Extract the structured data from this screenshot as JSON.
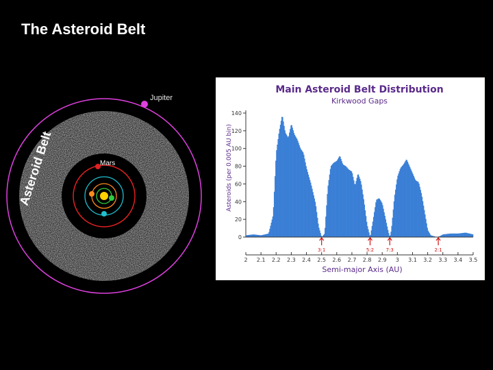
{
  "slide": {
    "title": "The Asteroid Belt"
  },
  "orbit_diagram": {
    "labels": {
      "jupiter": "Jupiter",
      "asteroid_belt": "Asteroid Belt",
      "mars": "Mars"
    },
    "colors": {
      "jupiter": "#e040e0",
      "belt": "#9a9a9a",
      "mars": "#e02020",
      "sun": "#ffd200",
      "earth": "#2ecc40",
      "venus": "#ff8c1a",
      "mercury": "#20c0d0"
    }
  },
  "chart_data": {
    "type": "bar",
    "title": "Main Asteroid Belt Distribution",
    "subtitle": "Kirkwood Gaps",
    "xlabel": "Semi-major Axis (AU)",
    "ylabel": "Asteroids (per 0.005 AU bin)",
    "xlim": [
      2.0,
      3.5
    ],
    "ylim": [
      0,
      140
    ],
    "x_ticks": [
      "2",
      "2.1",
      "2.2",
      "2.3",
      "2.4",
      "2.5",
      "2.6",
      "2.7",
      "2.8",
      "2.9",
      "3",
      "3.1",
      "3.2",
      "3.3",
      "3.4",
      "3.5"
    ],
    "y_ticks": [
      "0",
      "20",
      "40",
      "60",
      "80",
      "100",
      "120",
      "140"
    ],
    "bar_color": "#3a7fd6",
    "annotation_color": "#d01010",
    "gaps": [
      {
        "label": "3:1",
        "x": 2.5
      },
      {
        "label": "5:2",
        "x": 2.82
      },
      {
        "label": "7:3",
        "x": 2.95
      },
      {
        "label": "2:1",
        "x": 3.27
      }
    ],
    "profile": [
      [
        2.0,
        2
      ],
      [
        2.05,
        3
      ],
      [
        2.1,
        2
      ],
      [
        2.15,
        4
      ],
      [
        2.18,
        25
      ],
      [
        2.2,
        95
      ],
      [
        2.22,
        120
      ],
      [
        2.24,
        138
      ],
      [
        2.26,
        118
      ],
      [
        2.28,
        112
      ],
      [
        2.3,
        128
      ],
      [
        2.32,
        116
      ],
      [
        2.34,
        110
      ],
      [
        2.36,
        100
      ],
      [
        2.38,
        95
      ],
      [
        2.4,
        78
      ],
      [
        2.43,
        60
      ],
      [
        2.46,
        38
      ],
      [
        2.48,
        12
      ],
      [
        2.5,
        0
      ],
      [
        2.52,
        4
      ],
      [
        2.54,
        55
      ],
      [
        2.56,
        80
      ],
      [
        2.58,
        84
      ],
      [
        2.6,
        86
      ],
      [
        2.62,
        92
      ],
      [
        2.64,
        82
      ],
      [
        2.66,
        80
      ],
      [
        2.68,
        76
      ],
      [
        2.7,
        74
      ],
      [
        2.72,
        58
      ],
      [
        2.74,
        72
      ],
      [
        2.76,
        62
      ],
      [
        2.78,
        40
      ],
      [
        2.8,
        14
      ],
      [
        2.82,
        0
      ],
      [
        2.84,
        20
      ],
      [
        2.86,
        42
      ],
      [
        2.88,
        44
      ],
      [
        2.9,
        38
      ],
      [
        2.92,
        22
      ],
      [
        2.94,
        6
      ],
      [
        2.95,
        0
      ],
      [
        2.96,
        8
      ],
      [
        2.98,
        45
      ],
      [
        3.0,
        68
      ],
      [
        3.02,
        78
      ],
      [
        3.04,
        82
      ],
      [
        3.06,
        88
      ],
      [
        3.08,
        80
      ],
      [
        3.1,
        72
      ],
      [
        3.12,
        64
      ],
      [
        3.14,
        62
      ],
      [
        3.16,
        48
      ],
      [
        3.18,
        28
      ],
      [
        3.2,
        8
      ],
      [
        3.22,
        2
      ],
      [
        3.24,
        1
      ],
      [
        3.26,
        0
      ],
      [
        3.28,
        1
      ],
      [
        3.3,
        3
      ],
      [
        3.35,
        4
      ],
      [
        3.4,
        4
      ],
      [
        3.45,
        5
      ],
      [
        3.5,
        3
      ]
    ]
  }
}
